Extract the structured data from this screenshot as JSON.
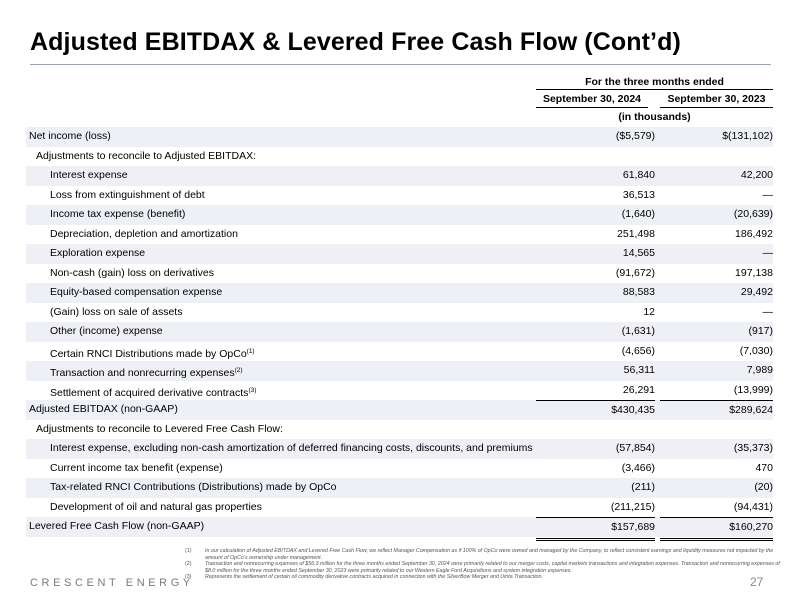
{
  "title": "Adjusted EBITDAX & Levered Free Cash Flow (Cont’d)",
  "header": {
    "period": "For the three months ended",
    "col1": "September 30, 2024",
    "col2": "September 30, 2023",
    "units": "(in thousands)"
  },
  "rows": [
    {
      "label": "Net income (loss)",
      "sup": "",
      "v1": "($5,579)",
      "v2": "$(131,102)"
    },
    {
      "label": "Adjustments to reconcile to Adjusted EBITDAX:",
      "sup": "",
      "v1": "",
      "v2": ""
    },
    {
      "label": "Interest expense",
      "sup": "",
      "v1": "61,840",
      "v2": "42,200"
    },
    {
      "label": "Loss from extinguishment of debt",
      "sup": "",
      "v1": "36,513",
      "v2": "—"
    },
    {
      "label": "Income tax expense (benefit)",
      "sup": "",
      "v1": "(1,640)",
      "v2": "(20,639)"
    },
    {
      "label": "Depreciation, depletion and amortization",
      "sup": "",
      "v1": "251,498",
      "v2": "186,492"
    },
    {
      "label": "Exploration expense",
      "sup": "",
      "v1": "14,565",
      "v2": "—"
    },
    {
      "label": "Non-cash (gain) loss on derivatives",
      "sup": "",
      "v1": "(91,672)",
      "v2": "197,138"
    },
    {
      "label": "Equity-based compensation expense",
      "sup": "",
      "v1": "88,583",
      "v2": "29,492"
    },
    {
      "label": "(Gain) loss on sale of assets",
      "sup": "",
      "v1": "12",
      "v2": "—"
    },
    {
      "label": "Other (income) expense",
      "sup": "",
      "v1": "(1,631)",
      "v2": "(917)"
    },
    {
      "label": "Certain RNCI Distributions made by OpCo",
      "sup": "(1)",
      "v1": "(4,656)",
      "v2": "(7,030)"
    },
    {
      "label": "Transaction and nonrecurring expenses",
      "sup": "(2)",
      "v1": "56,311",
      "v2": "7,989"
    },
    {
      "label": "Settlement of acquired derivative contracts",
      "sup": "(3)",
      "v1": "26,291",
      "v2": "(13,999)"
    },
    {
      "label": "Adjusted EBITDAX (non-GAAP)",
      "sup": "",
      "v1": "$430,435",
      "v2": "$289,624"
    },
    {
      "label": "Adjustments to reconcile to Levered Free Cash Flow:",
      "sup": "",
      "v1": "",
      "v2": ""
    },
    {
      "label": "Interest expense, excluding non-cash amortization of deferred financing costs, discounts, and premiums",
      "sup": "",
      "v1": "(57,854)",
      "v2": "(35,373)"
    },
    {
      "label": "Current income tax benefit (expense)",
      "sup": "",
      "v1": "(3,466)",
      "v2": "470"
    },
    {
      "label": "Tax-related RNCI Contributions (Distributions) made by OpCo",
      "sup": "",
      "v1": "(211)",
      "v2": "(20)"
    },
    {
      "label": "Development of oil and natural gas properties",
      "sup": "",
      "v1": "(211,215)",
      "v2": "(94,431)"
    },
    {
      "label": "Levered Free Cash Flow (non-GAAP)",
      "sup": "",
      "v1": "$157,689",
      "v2": "$160,270"
    }
  ],
  "footnotes": [
    {
      "num": "(1)",
      "text": "In our calculation of Adjusted EBITDAX and Levered Free Cash Flow, we reflect Manager Compensation as if 100% of OpCo were owned and managed by the Company, to reflect consistent earnings and liquidity measures not impacted by the amount of OpCo’s ownership under management."
    },
    {
      "num": "(2)",
      "text": "Transaction and nonrecurring expenses of $56.3 million for the three months ended September 30, 2024 were primarily related to our merger costs, capital markets transactions and integration expenses. Transaction and nonrecurring expenses of $8.0 million for the three months ended September 30, 2023 were primarily related to our Western Eagle Ford Acquisitions and system integration expenses."
    },
    {
      "num": "(3)",
      "text": "Represents the settlement of certain oil commodity derivative contracts acquired in connection with the SilverBow Merger and Uinta Transaction."
    }
  ],
  "brand": "CRESCENT ENERGY",
  "page_number": "27"
}
